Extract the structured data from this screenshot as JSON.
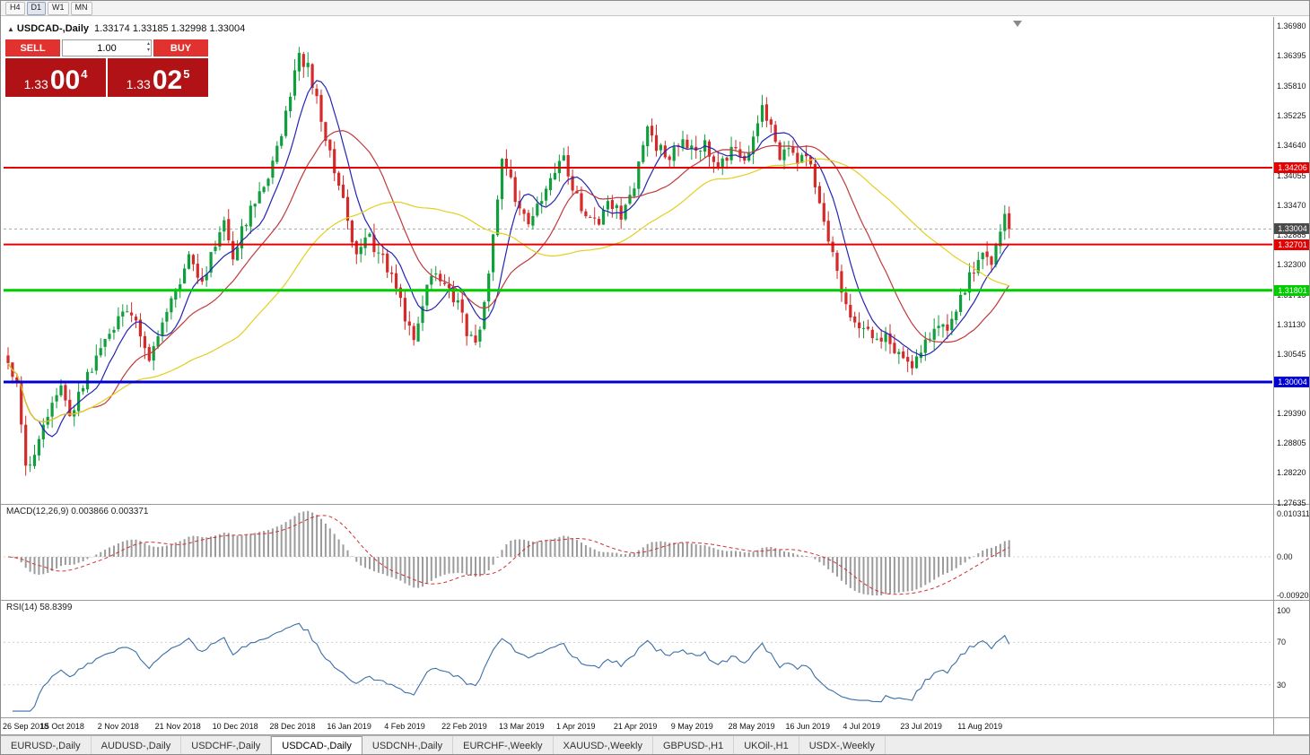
{
  "toolbar": {
    "timeframes": [
      "H4",
      "D1",
      "W1",
      "MN"
    ],
    "active": "D1"
  },
  "chart_header": {
    "symbol": "USDCAD-,Daily",
    "ohlc": "1.33174 1.33185 1.32998 1.33004"
  },
  "trade_panel": {
    "sell_label": "SELL",
    "buy_label": "BUY",
    "volume": "1.00",
    "sell_price": {
      "prefix": "1.33",
      "big": "00",
      "sup": "4"
    },
    "buy_price": {
      "prefix": "1.33",
      "big": "02",
      "sup": "5"
    }
  },
  "price_axis": {
    "labels": [
      "1.36980",
      "1.36395",
      "1.35810",
      "1.35225",
      "1.34640",
      "1.34055",
      "1.33470",
      "1.32885",
      "1.32300",
      "1.31715",
      "1.31130",
      "1.30545",
      "1.29390",
      "1.28805",
      "1.28220",
      "1.27635"
    ]
  },
  "levels": [
    {
      "label": "1.34206",
      "value": 1.34206,
      "color": "#e60000",
      "width": 2
    },
    {
      "label": "1.32701",
      "value": 1.32701,
      "color": "#e60000",
      "width": 2
    },
    {
      "label": "1.31801",
      "value": 1.31801,
      "color": "#00cc00",
      "width": 3
    },
    {
      "label": "1.30004",
      "value": 1.30004,
      "color": "#0000cf",
      "width": 3
    }
  ],
  "current_price": {
    "label": "1.33004",
    "value": 1.33004,
    "color": "#4a4a4a"
  },
  "macd_panel": {
    "label": "MACD(12,26,9) 0.003866 0.003371",
    "axis_labels": [
      {
        "text": "0.010311",
        "value": 0.010311
      },
      {
        "text": "0.00",
        "value": 0
      },
      {
        "text": "-0.00920",
        "value": -0.0092
      }
    ]
  },
  "rsi_panel": {
    "label": "RSI(14) 58.8399",
    "axis_labels": [
      {
        "text": "100",
        "value": 100
      },
      {
        "text": "70",
        "value": 70
      },
      {
        "text": "30",
        "value": 30
      }
    ],
    "level_lines": [
      70,
      30
    ]
  },
  "dates": [
    "26 Sep 2018",
    "15 Oct 2018",
    "2 Nov 2018",
    "21 Nov 2018",
    "10 Dec 2018",
    "28 Dec 2018",
    "16 Jan 2019",
    "4 Feb 2019",
    "22 Feb 2019",
    "13 Mar 2019",
    "1 Apr 2019",
    "21 Apr 2019",
    "9 May 2019",
    "28 May 2019",
    "16 Jun 2019",
    "4 Jul 2019",
    "23 Jul 2019",
    "11 Aug 2019"
  ],
  "tabs": {
    "items": [
      "EURUSD-,Daily",
      "AUDUSD-,Daily",
      "USDCHF-,Daily",
      "USDCAD-,Daily",
      "USDCNH-,Daily",
      "EURCHF-,Weekly",
      "XAUUSD-,Weekly",
      "GBPUSD-,H1",
      "UKOil-,H1",
      "USDX-,Weekly"
    ],
    "active_index": 3
  },
  "chart_data": {
    "type": "candlestick",
    "symbol": "USDCAD",
    "timeframe": "Daily",
    "n": 228,
    "last_close": 1.33004,
    "price_range_visible": [
      1.27635,
      1.3698
    ],
    "colors": {
      "up": "#119e3d",
      "down": "#d32a2a"
    },
    "ma": [
      {
        "period": 8,
        "color": "#2525b5"
      },
      {
        "period": 20,
        "color": "#c03a3a"
      },
      {
        "period": 50,
        "color": "#e3cf1e"
      }
    ],
    "macd": {
      "fast": 12,
      "slow": 26,
      "signal": 9
    },
    "rsi": {
      "period": 14
    },
    "anchors": [
      [
        0,
        1.3045
      ],
      [
        2,
        1.2995
      ],
      [
        4,
        1.2825
      ],
      [
        6,
        1.2865
      ],
      [
        9,
        1.294
      ],
      [
        12,
        1.2985
      ],
      [
        14,
        1.294
      ],
      [
        17,
        1.299
      ],
      [
        20,
        1.305
      ],
      [
        24,
        1.311
      ],
      [
        27,
        1.315
      ],
      [
        30,
        1.309
      ],
      [
        32,
        1.305
      ],
      [
        35,
        1.311
      ],
      [
        38,
        1.318
      ],
      [
        41,
        1.324
      ],
      [
        44,
        1.32
      ],
      [
        47,
        1.327
      ],
      [
        49,
        1.332
      ],
      [
        51,
        1.325
      ],
      [
        53,
        1.33
      ],
      [
        56,
        1.336
      ],
      [
        59,
        1.341
      ],
      [
        62,
        1.349
      ],
      [
        64,
        1.356
      ],
      [
        66,
        1.364
      ],
      [
        68,
        1.362
      ],
      [
        70,
        1.355
      ],
      [
        72,
        1.348
      ],
      [
        75,
        1.339
      ],
      [
        77,
        1.331
      ],
      [
        79,
        1.326
      ],
      [
        82,
        1.328
      ],
      [
        85,
        1.324
      ],
      [
        88,
        1.319
      ],
      [
        90,
        1.313
      ],
      [
        92,
        1.308
      ],
      [
        94,
        1.316
      ],
      [
        96,
        1.322
      ],
      [
        99,
        1.32
      ],
      [
        102,
        1.315
      ],
      [
        104,
        1.31
      ],
      [
        106,
        1.307
      ],
      [
        108,
        1.316
      ],
      [
        110,
        1.328
      ],
      [
        112,
        1.343
      ],
      [
        114,
        1.339
      ],
      [
        116,
        1.333
      ],
      [
        118,
        1.331
      ],
      [
        120,
        1.335
      ],
      [
        123,
        1.339
      ],
      [
        126,
        1.344
      ],
      [
        128,
        1.338
      ],
      [
        131,
        1.333
      ],
      [
        134,
        1.331
      ],
      [
        136,
        1.336
      ],
      [
        139,
        1.333
      ],
      [
        142,
        1.339
      ],
      [
        144,
        1.346
      ],
      [
        145,
        1.35
      ],
      [
        147,
        1.3465
      ],
      [
        150,
        1.344
      ],
      [
        153,
        1.348
      ],
      [
        156,
        1.3445
      ],
      [
        158,
        1.3465
      ],
      [
        161,
        1.3425
      ],
      [
        164,
        1.3455
      ],
      [
        167,
        1.3435
      ],
      [
        169,
        1.3485
      ],
      [
        171,
        1.3545
      ],
      [
        173,
        1.3495
      ],
      [
        175,
        1.3445
      ],
      [
        177,
        1.347
      ],
      [
        179,
        1.343
      ],
      [
        181,
        1.345
      ],
      [
        183,
        1.339
      ],
      [
        185,
        1.331
      ],
      [
        187,
        1.3255
      ],
      [
        189,
        1.3185
      ],
      [
        191,
        1.3125
      ],
      [
        193,
        1.3095
      ],
      [
        195,
        1.3115
      ],
      [
        197,
        1.3075
      ],
      [
        199,
        1.3095
      ],
      [
        201,
        1.3065
      ],
      [
        203,
        1.3045
      ],
      [
        205,
        1.303
      ],
      [
        207,
        1.306
      ],
      [
        209,
        1.3085
      ],
      [
        211,
        1.311
      ],
      [
        213,
        1.3095
      ],
      [
        215,
        1.3135
      ],
      [
        217,
        1.3185
      ],
      [
        219,
        1.3225
      ],
      [
        221,
        1.3265
      ],
      [
        223,
        1.3235
      ],
      [
        225,
        1.3295
      ],
      [
        226,
        1.333
      ],
      [
        227,
        1.33004
      ]
    ]
  }
}
